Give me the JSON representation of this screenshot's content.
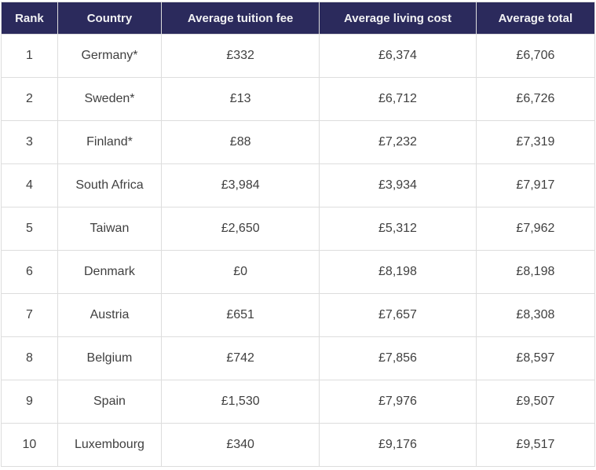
{
  "chart_data": {
    "type": "table",
    "title": "",
    "columns": [
      "Rank",
      "Country",
      "Average tuition fee",
      "Average living cost",
      "Average total"
    ],
    "rows": [
      [
        "1",
        "Germany*",
        "£332",
        "£6,374",
        "£6,706"
      ],
      [
        "2",
        "Sweden*",
        "£13",
        "£6,712",
        "£6,726"
      ],
      [
        "3",
        "Finland*",
        "£88",
        "£7,232",
        "£7,319"
      ],
      [
        "4",
        "South Africa",
        "£3,984",
        "£3,934",
        "£7,917"
      ],
      [
        "5",
        "Taiwan",
        "£2,650",
        "£5,312",
        "£7,962"
      ],
      [
        "6",
        "Denmark",
        "£0",
        "£8,198",
        "£8,198"
      ],
      [
        "7",
        "Austria",
        "£651",
        "£7,657",
        "£8,308"
      ],
      [
        "8",
        "Belgium",
        "£742",
        "£7,856",
        "£8,597"
      ],
      [
        "9",
        "Spain",
        "£1,530",
        "£7,976",
        "£9,507"
      ],
      [
        "10",
        "Luxembourg",
        "£340",
        "£9,176",
        "£9,517"
      ]
    ]
  },
  "colors": {
    "header_background": "#2b2a5c",
    "header_text": "#f2f2f4",
    "body_text": "#404040",
    "border": "#dddddd"
  }
}
